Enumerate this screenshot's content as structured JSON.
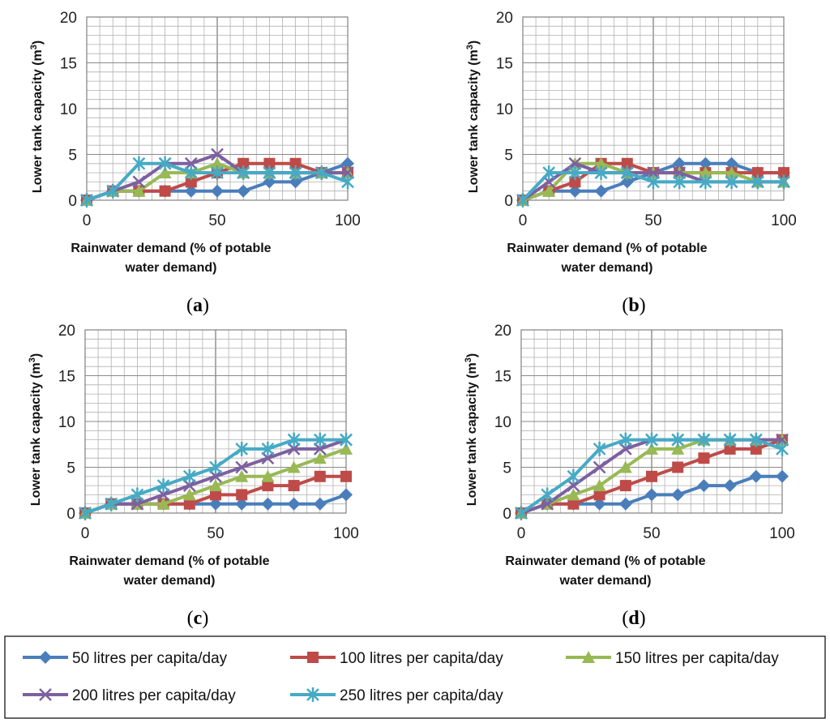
{
  "chart_data": {
    "type": "line",
    "x": [
      0,
      10,
      20,
      30,
      40,
      50,
      60,
      70,
      80,
      90,
      100
    ],
    "xticks": [
      "0",
      "50",
      "100"
    ],
    "yticks": [
      "0",
      "5",
      "10",
      "15",
      "20"
    ],
    "xlim": [
      0,
      100
    ],
    "ylim": [
      0,
      20
    ],
    "xlabel_line1": "Rainwater demand (% of potable",
    "xlabel_line2": "water demand)",
    "ylabel": "Lower tank capacity (m",
    "ylabel_sup": "3",
    "ylabel_close": ")",
    "series_styles": [
      {
        "name": "50 litres per capita/day",
        "color": "#4a7ebb",
        "marker": "diamond"
      },
      {
        "name": "100 litres per capita/day",
        "color": "#be4b48",
        "marker": "square"
      },
      {
        "name": "150 litres per capita/day",
        "color": "#98b954",
        "marker": "triangle"
      },
      {
        "name": "200 litres per capita/day",
        "color": "#7d60a0",
        "marker": "x"
      },
      {
        "name": "250 litres per capita/day",
        "color": "#46aac5",
        "marker": "star"
      }
    ],
    "panels": [
      {
        "label": "a",
        "series": [
          {
            "name": "50 litres per capita/day",
            "values": [
              0,
              1,
              1,
              1,
              1,
              1,
              1,
              2,
              2,
              3,
              4
            ]
          },
          {
            "name": "100 litres per capita/day",
            "values": [
              0,
              1,
              1,
              1,
              2,
              3,
              4,
              4,
              4,
              3,
              3
            ]
          },
          {
            "name": "150 litres per capita/day",
            "values": [
              0,
              1,
              1,
              3,
              3,
              4,
              3,
              3,
              3,
              3,
              3
            ]
          },
          {
            "name": "200 litres per capita/day",
            "values": [
              0,
              1,
              2,
              4,
              4,
              5,
              3,
              3,
              3,
              3,
              3
            ]
          },
          {
            "name": "250 litres per capita/day",
            "values": [
              0,
              1,
              4,
              4,
              3,
              3,
              3,
              3,
              3,
              3,
              2
            ]
          }
        ]
      },
      {
        "label": "b",
        "series": [
          {
            "name": "50 litres per capita/day",
            "values": [
              0,
              1,
              1,
              1,
              2,
              3,
              4,
              4,
              4,
              3,
              3
            ]
          },
          {
            "name": "100 litres per capita/day",
            "values": [
              0,
              1,
              2,
              4,
              4,
              3,
              3,
              3,
              3,
              3,
              3
            ]
          },
          {
            "name": "150 litres per capita/day",
            "values": [
              0,
              1,
              4,
              4,
              3,
              3,
              3,
              3,
              3,
              2,
              2
            ]
          },
          {
            "name": "200 litres per capita/day",
            "values": [
              0,
              2,
              4,
              3,
              3,
              3,
              3,
              2,
              2,
              2,
              2
            ]
          },
          {
            "name": "250 litres per capita/day",
            "values": [
              0,
              3,
              3,
              3,
              3,
              2,
              2,
              2,
              2,
              2,
              2
            ]
          }
        ]
      },
      {
        "label": "c",
        "series": [
          {
            "name": "50 litres per capita/day",
            "values": [
              0,
              1,
              1,
              1,
              1,
              1,
              1,
              1,
              1,
              1,
              2
            ]
          },
          {
            "name": "100 litres per capita/day",
            "values": [
              0,
              1,
              1,
              1,
              1,
              2,
              2,
              3,
              3,
              4,
              4
            ]
          },
          {
            "name": "150 litres per capita/day",
            "values": [
              0,
              1,
              1,
              1,
              2,
              3,
              4,
              4,
              5,
              6,
              7
            ]
          },
          {
            "name": "200 litres per capita/day",
            "values": [
              0,
              1,
              1,
              2,
              3,
              4,
              5,
              6,
              7,
              7,
              8
            ]
          },
          {
            "name": "250 litres per capita/day",
            "values": [
              0,
              1,
              2,
              3,
              4,
              5,
              7,
              7,
              8,
              8,
              8
            ]
          }
        ]
      },
      {
        "label": "d",
        "series": [
          {
            "name": "50 litres per capita/day",
            "values": [
              0,
              1,
              1,
              1,
              1,
              2,
              2,
              3,
              3,
              4,
              4
            ]
          },
          {
            "name": "100 litres per capita/day",
            "values": [
              0,
              1,
              1,
              2,
              3,
              4,
              5,
              6,
              7,
              7,
              8
            ]
          },
          {
            "name": "150 litres per capita/day",
            "values": [
              0,
              1,
              2,
              3,
              5,
              7,
              7,
              8,
              8,
              8,
              8
            ]
          },
          {
            "name": "200 litres per capita/day",
            "values": [
              0,
              1,
              3,
              5,
              7,
              8,
              8,
              8,
              8,
              8,
              8
            ]
          },
          {
            "name": "250 litres per capita/day",
            "values": [
              0,
              2,
              4,
              7,
              8,
              8,
              8,
              8,
              8,
              8,
              7
            ]
          }
        ]
      }
    ]
  }
}
